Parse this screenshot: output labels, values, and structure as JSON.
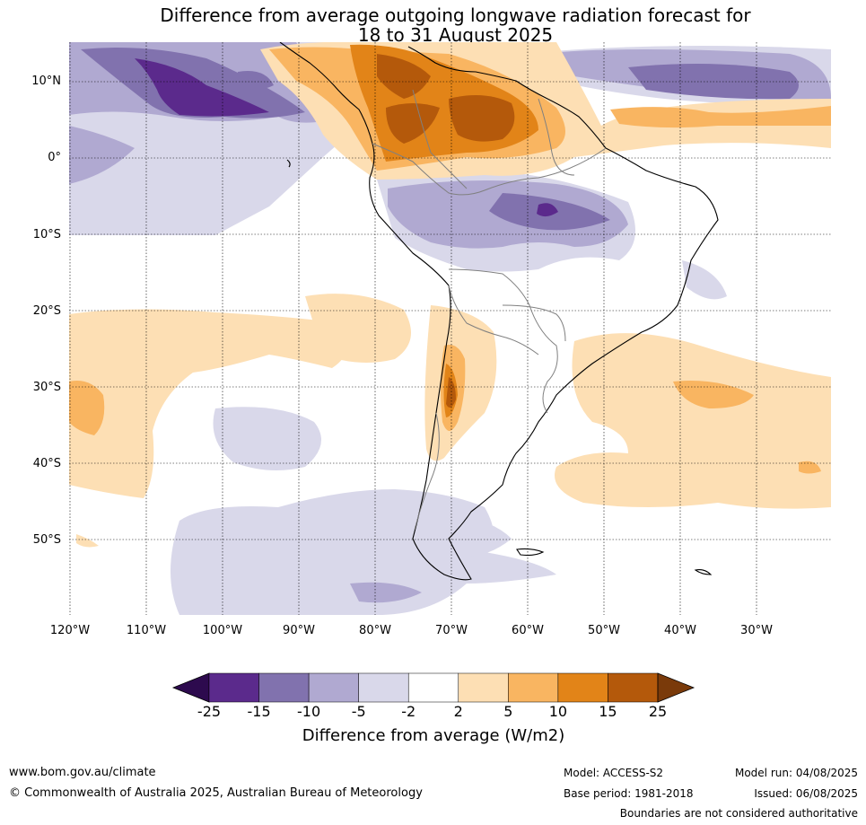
{
  "title": {
    "line1": "Difference from average outgoing longwave radiation forecast for",
    "line2": "18 to 31 August 2025"
  },
  "map": {
    "lat_labels": [
      "10°N",
      "0°",
      "10°S",
      "20°S",
      "30°S",
      "40°S",
      "50°S"
    ],
    "lon_labels": [
      "120°W",
      "110°W",
      "100°W",
      "90°W",
      "80°W",
      "70°W",
      "60°W",
      "50°W",
      "40°W",
      "30°W"
    ]
  },
  "legend": {
    "title": "Difference from average (W/m2)",
    "ticks": [
      "-25",
      "-15",
      "-10",
      "-5",
      "-2",
      "2",
      "5",
      "10",
      "15",
      "25"
    ],
    "colors": [
      "#2d0a4e",
      "#5b2a8c",
      "#8172ae",
      "#b0a9d1",
      "#d9d8ea",
      "#ffffff",
      "#fddfb4",
      "#f9b561",
      "#e28418",
      "#b4590b",
      "#7a3a0a"
    ]
  },
  "footer": {
    "website": "www.bom.gov.au/climate",
    "copyright": "© Commonwealth of Australia 2025, Australian Bureau of Meteorology",
    "model": "Model: ACCESS-S2",
    "base_period": "Base period: 1981-2018",
    "model_run": "Model run: 04/08/2025",
    "issued": "Issued: 06/08/2025",
    "disclaimer": "Boundaries are not considered authoritative"
  }
}
